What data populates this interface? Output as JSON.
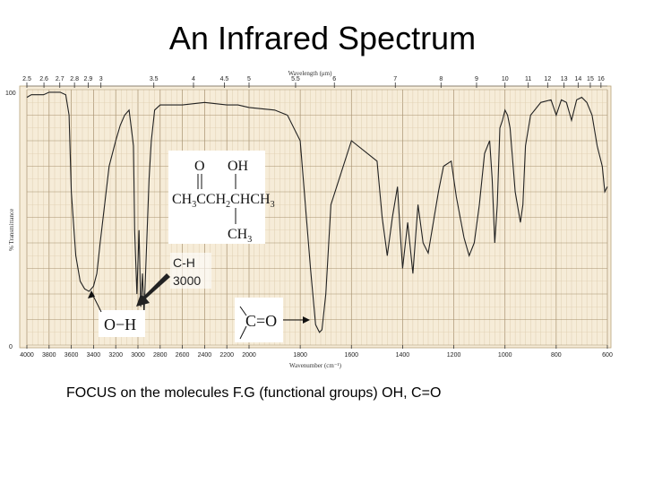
{
  "title": "An Infrared Spectrum",
  "caption": "FOCUS on the molecules F.G (functional groups) OH, C=O",
  "chart_data": {
    "type": "line",
    "top_axis_label": "Wavelength (μm)",
    "top_ticks": [
      "2.5",
      "2.6",
      "2.7",
      "2.8",
      "2.9",
      "3",
      "3.5",
      "4",
      "4.5",
      "5",
      "5.5",
      "6",
      "7",
      "8",
      "9",
      "10",
      "11",
      "12",
      "13",
      "14",
      "15",
      "16"
    ],
    "xlabel": "Wavenumber (cm⁻¹)",
    "x_ticks": [
      "4000",
      "3800",
      "3600",
      "3400",
      "3200",
      "3000",
      "2800",
      "2600",
      "2400",
      "2200",
      "2000",
      "1800",
      "1600",
      "1400",
      "1200",
      "1000",
      "800",
      "600"
    ],
    "ylabel": "% Transmittance",
    "y_ticks": [
      "100",
      "0"
    ],
    "xlim": [
      4000,
      600
    ],
    "ylim": [
      0,
      100
    ],
    "series": [
      {
        "x": [
          4000,
          3960,
          3900,
          3850,
          3800,
          3700,
          3650,
          3620,
          3600,
          3560,
          3520,
          3480,
          3440,
          3400,
          3370,
          3340,
          3300,
          3260,
          3200,
          3160,
          3120,
          3080,
          3040,
          3030,
          3010,
          2990,
          2975,
          2960,
          2945,
          2930,
          2900,
          2880,
          2860,
          2850,
          2800,
          2600,
          2400,
          2200,
          2100,
          2000,
          1900,
          1850,
          1800,
          1760,
          1740,
          1725,
          1715,
          1700,
          1680,
          1600,
          1500,
          1480,
          1460,
          1440,
          1420,
          1410,
          1400,
          1380,
          1370,
          1360,
          1340,
          1320,
          1300,
          1260,
          1240,
          1210,
          1190,
          1160,
          1140,
          1120,
          1100,
          1080,
          1060,
          1050,
          1040,
          1030,
          1020,
          1010,
          1000,
          990,
          980,
          960,
          940,
          930,
          920,
          900,
          860,
          820,
          800,
          780,
          760,
          740,
          720,
          700,
          680,
          660,
          640,
          620,
          610,
          600
        ],
        "y": [
          97,
          98,
          98,
          98,
          99,
          99,
          98,
          90,
          60,
          35,
          25,
          22,
          21,
          23,
          28,
          40,
          55,
          70,
          80,
          86,
          90,
          92,
          78,
          45,
          20,
          45,
          15,
          28,
          12,
          30,
          65,
          80,
          88,
          92,
          94,
          94,
          95,
          94,
          94,
          93,
          92,
          90,
          80,
          30,
          8,
          5,
          6,
          20,
          55,
          80,
          72,
          50,
          35,
          50,
          62,
          45,
          30,
          48,
          38,
          28,
          55,
          40,
          36,
          60,
          70,
          72,
          58,
          42,
          35,
          40,
          55,
          75,
          80,
          65,
          40,
          55,
          85,
          88,
          92,
          90,
          85,
          60,
          48,
          55,
          78,
          90,
          95,
          96,
          90,
          96,
          95,
          88,
          96,
          97,
          95,
          90,
          78,
          70,
          60,
          62
        ],
        "color": "#222222"
      }
    ]
  },
  "structure": {
    "o": "O",
    "oh": "OH",
    "ch3_a": "CH",
    "sub3_a": "3",
    "cc": "CCH",
    "sub2": "2",
    "ch": "CH",
    "ch3_b": "CH",
    "sub3_b": "3",
    "ch3_c": "CH",
    "sub3_c": "3"
  },
  "callouts": {
    "ch_label": "C-H",
    "ch_value": "3000",
    "oh_group": "O−H",
    "co_group": "C=O"
  }
}
